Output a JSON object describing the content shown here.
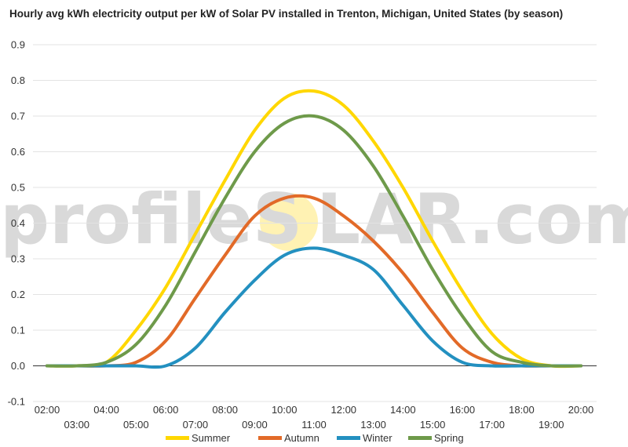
{
  "chart_data": {
    "type": "line",
    "title": "Hourly avg kWh electricity output per kW of Solar PV installed in Trenton, Michigan, United States (by season)",
    "xlabel": "",
    "ylabel": "",
    "x": [
      "02:00",
      "03:00",
      "04:00",
      "05:00",
      "06:00",
      "07:00",
      "08:00",
      "09:00",
      "10:00",
      "11:00",
      "12:00",
      "13:00",
      "14:00",
      "15:00",
      "16:00",
      "17:00",
      "18:00",
      "19:00",
      "20:00"
    ],
    "ylim": [
      -0.1,
      0.9
    ],
    "yticks": [
      "-0.1",
      "0.0",
      "0.1",
      "0.2",
      "0.3",
      "0.4",
      "0.5",
      "0.6",
      "0.7",
      "0.8",
      "0.9"
    ],
    "grid": true,
    "legend_position": "bottom",
    "series": [
      {
        "name": "Summer",
        "color": "#FFD700",
        "values": [
          0.0,
          0.0,
          0.01,
          0.1,
          0.22,
          0.37,
          0.52,
          0.66,
          0.75,
          0.77,
          0.73,
          0.63,
          0.5,
          0.35,
          0.21,
          0.09,
          0.02,
          0.0,
          0.0
        ]
      },
      {
        "name": "Autumn",
        "color": "#E26A28",
        "values": [
          0.0,
          0.0,
          0.0,
          0.01,
          0.07,
          0.19,
          0.31,
          0.42,
          0.47,
          0.47,
          0.42,
          0.35,
          0.26,
          0.15,
          0.05,
          0.01,
          0.0,
          0.0,
          0.0
        ]
      },
      {
        "name": "Winter",
        "color": "#2390C0",
        "values": [
          0.0,
          0.0,
          0.0,
          0.0,
          0.0,
          0.05,
          0.15,
          0.24,
          0.31,
          0.33,
          0.31,
          0.27,
          0.17,
          0.07,
          0.01,
          0.0,
          0.0,
          0.0,
          0.0
        ]
      },
      {
        "name": "Spring",
        "color": "#6E9A4A",
        "values": [
          0.0,
          0.0,
          0.01,
          0.06,
          0.17,
          0.32,
          0.47,
          0.6,
          0.68,
          0.7,
          0.66,
          0.56,
          0.42,
          0.27,
          0.14,
          0.04,
          0.01,
          0.0,
          0.0
        ]
      }
    ]
  },
  "watermark": {
    "text_left": "profileS",
    "text_right": "LAR.com",
    "color": "#d9d9d9",
    "sun_color": "#fff2b3"
  }
}
